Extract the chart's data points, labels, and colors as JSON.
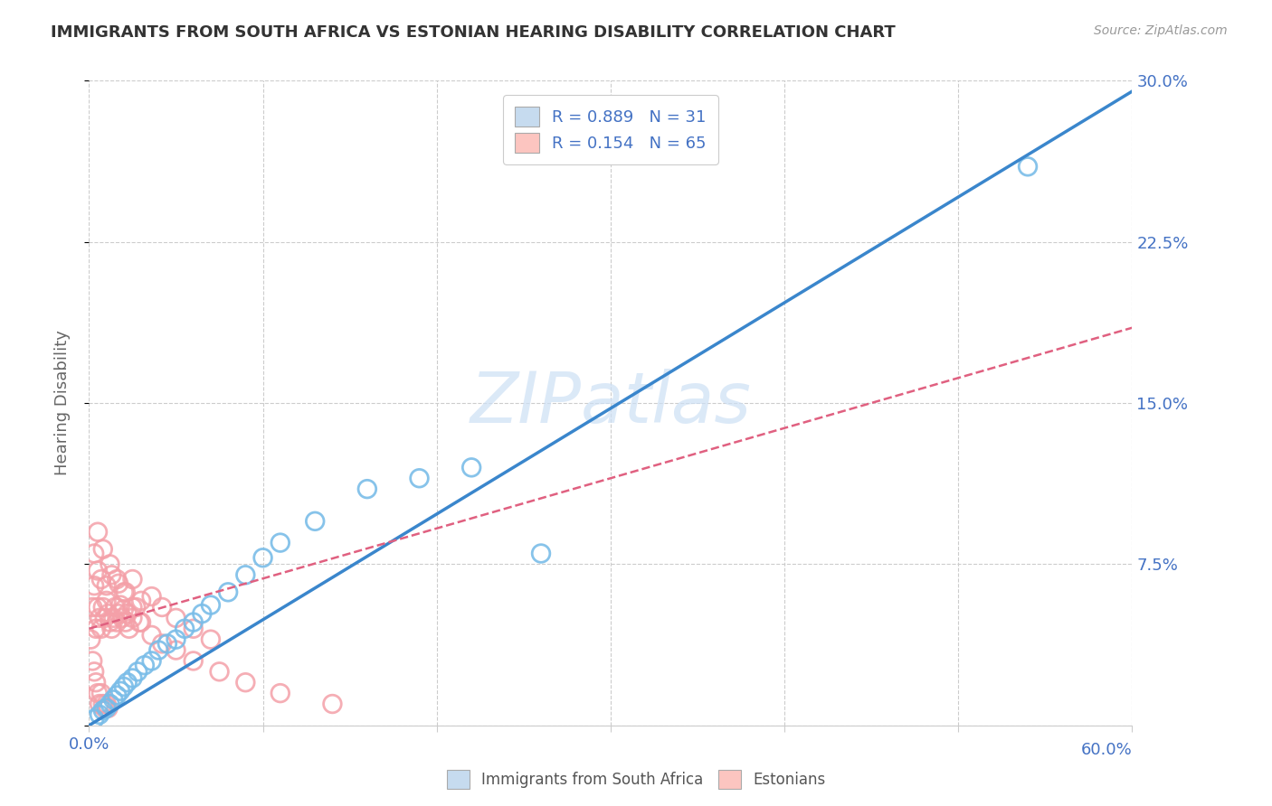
{
  "title": "IMMIGRANTS FROM SOUTH AFRICA VS ESTONIAN HEARING DISABILITY CORRELATION CHART",
  "source": "Source: ZipAtlas.com",
  "ylabel": "Hearing Disability",
  "xlim": [
    0.0,
    0.6
  ],
  "ylim": [
    0.0,
    0.3
  ],
  "xticks": [
    0.0,
    0.1,
    0.2,
    0.3,
    0.4,
    0.5,
    0.6
  ],
  "xticklabels_left": [
    "0.0%",
    "",
    "",
    "",
    "",
    "",
    ""
  ],
  "xticklabels_right": "60.0%",
  "yticks": [
    0.0,
    0.075,
    0.15,
    0.225,
    0.3
  ],
  "yticklabels": [
    "",
    "7.5%",
    "15.0%",
    "22.5%",
    "30.0%"
  ],
  "blue_color": "#7abde8",
  "pink_color": "#f4a0a8",
  "blue_line_color": "#3a86cc",
  "pink_line_color": "#e06080",
  "blue_fill": "#c6dbef",
  "pink_fill": "#fcc5c0",
  "watermark": "ZIPatlas",
  "blue_scatter_x": [
    0.003,
    0.006,
    0.008,
    0.01,
    0.012,
    0.014,
    0.016,
    0.018,
    0.02,
    0.022,
    0.025,
    0.028,
    0.032,
    0.036,
    0.04,
    0.045,
    0.05,
    0.055,
    0.06,
    0.065,
    0.07,
    0.08,
    0.09,
    0.1,
    0.11,
    0.13,
    0.16,
    0.19,
    0.22,
    0.26,
    0.54
  ],
  "blue_scatter_y": [
    0.003,
    0.005,
    0.007,
    0.008,
    0.01,
    0.012,
    0.014,
    0.016,
    0.018,
    0.02,
    0.022,
    0.025,
    0.028,
    0.03,
    0.035,
    0.038,
    0.04,
    0.045,
    0.048,
    0.052,
    0.056,
    0.062,
    0.07,
    0.078,
    0.085,
    0.095,
    0.11,
    0.115,
    0.12,
    0.08,
    0.26
  ],
  "pink_scatter_x": [
    0.001,
    0.002,
    0.002,
    0.003,
    0.003,
    0.004,
    0.004,
    0.005,
    0.005,
    0.006,
    0.006,
    0.007,
    0.007,
    0.008,
    0.008,
    0.009,
    0.009,
    0.01,
    0.01,
    0.011,
    0.011,
    0.012,
    0.013,
    0.014,
    0.015,
    0.016,
    0.017,
    0.018,
    0.019,
    0.02,
    0.021,
    0.022,
    0.023,
    0.025,
    0.027,
    0.029,
    0.003,
    0.005,
    0.007,
    0.01,
    0.013,
    0.017,
    0.021,
    0.025,
    0.03,
    0.036,
    0.042,
    0.05,
    0.06,
    0.07,
    0.005,
    0.008,
    0.012,
    0.016,
    0.02,
    0.025,
    0.03,
    0.036,
    0.042,
    0.05,
    0.06,
    0.075,
    0.09,
    0.11,
    0.14
  ],
  "pink_scatter_y": [
    0.04,
    0.055,
    0.03,
    0.065,
    0.025,
    0.045,
    0.02,
    0.055,
    0.015,
    0.05,
    0.01,
    0.045,
    0.015,
    0.055,
    0.01,
    0.05,
    0.008,
    0.058,
    0.01,
    0.052,
    0.008,
    0.048,
    0.045,
    0.05,
    0.055,
    0.048,
    0.052,
    0.056,
    0.05,
    0.054,
    0.048,
    0.052,
    0.045,
    0.05,
    0.055,
    0.048,
    0.08,
    0.072,
    0.068,
    0.065,
    0.07,
    0.066,
    0.062,
    0.068,
    0.058,
    0.06,
    0.055,
    0.05,
    0.045,
    0.04,
    0.09,
    0.082,
    0.075,
    0.068,
    0.062,
    0.055,
    0.048,
    0.042,
    0.038,
    0.035,
    0.03,
    0.025,
    0.02,
    0.015,
    0.01
  ],
  "blue_line_x": [
    0.0,
    0.6
  ],
  "blue_line_y": [
    0.0,
    0.295
  ],
  "pink_line_x": [
    0.0,
    0.6
  ],
  "pink_line_y": [
    0.045,
    0.185
  ]
}
